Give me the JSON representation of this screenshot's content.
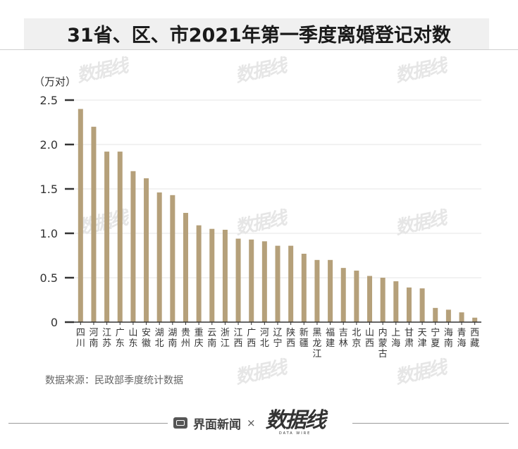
{
  "title": "31省、区、市2021年第一季度离婚登记对数",
  "source": "数据来源：民政部季度统计数据",
  "footer": {
    "brand": "界面新闻",
    "times": "×",
    "datawire": "数据线",
    "datawire_sub": "DATA WIRE"
  },
  "watermark_text": "数据线",
  "colors": {
    "bar": "#b5a07a",
    "axis": "#333333",
    "grid": "#e5e5e5"
  },
  "chart_data": {
    "type": "bar",
    "unit_label": "（万对）",
    "ylim": [
      0,
      2.5
    ],
    "yticks": [
      "0",
      "0.5",
      "1.0",
      "1.5",
      "2.0",
      "2.5"
    ],
    "ytick_values": [
      0,
      0.5,
      1.0,
      1.5,
      2.0,
      2.5
    ],
    "grid": true,
    "categories": [
      [
        "四",
        "川"
      ],
      [
        "河",
        "南"
      ],
      [
        "江",
        "苏"
      ],
      [
        "广",
        "东"
      ],
      [
        "山",
        "东"
      ],
      [
        "安",
        "徽"
      ],
      [
        "湖",
        "北"
      ],
      [
        "湖",
        "南"
      ],
      [
        "贵",
        "州"
      ],
      [
        "重",
        "庆"
      ],
      [
        "云",
        "南"
      ],
      [
        "浙",
        "江"
      ],
      [
        "江",
        "西"
      ],
      [
        "广",
        "西"
      ],
      [
        "河",
        "北"
      ],
      [
        "辽",
        "宁"
      ],
      [
        "陕",
        "西"
      ],
      [
        "新",
        "疆"
      ],
      [
        "黑",
        "龙",
        "江"
      ],
      [
        "福",
        "建"
      ],
      [
        "吉",
        "林"
      ],
      [
        "北",
        "京"
      ],
      [
        "山",
        "西"
      ],
      [
        "内",
        "蒙",
        "古"
      ],
      [
        "上",
        "海"
      ],
      [
        "甘",
        "肃"
      ],
      [
        "天",
        "津"
      ],
      [
        "宁",
        "夏"
      ],
      [
        "海",
        "南"
      ],
      [
        "青",
        "海"
      ],
      [
        "西",
        "藏"
      ]
    ],
    "values": [
      2.4,
      2.2,
      1.92,
      1.92,
      1.7,
      1.62,
      1.46,
      1.43,
      1.23,
      1.09,
      1.05,
      1.04,
      0.94,
      0.93,
      0.91,
      0.86,
      0.86,
      0.77,
      0.7,
      0.7,
      0.61,
      0.58,
      0.52,
      0.5,
      0.46,
      0.39,
      0.38,
      0.16,
      0.14,
      0.11,
      0.05
    ]
  }
}
